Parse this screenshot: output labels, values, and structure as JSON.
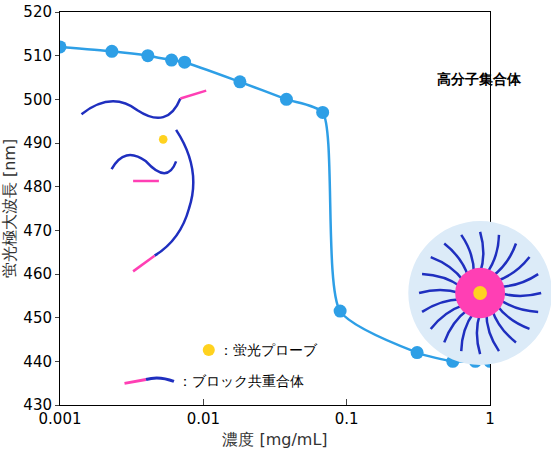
{
  "chart_data": {
    "type": "line",
    "x_label": "濃度 [mg/mL]",
    "y_label": "蛍光極大波長 [nm]",
    "x": [
      0.001,
      0.0023,
      0.0041,
      0.006,
      0.0074,
      0.018,
      0.038,
      0.068,
      0.09,
      0.31,
      0.55,
      0.79,
      1
    ],
    "values": [
      512,
      511,
      510,
      509,
      508.5,
      504,
      500,
      497,
      451.5,
      442,
      440,
      440,
      440
    ],
    "color": "#2e9fe6",
    "marker": "circle",
    "log": "x",
    "grid": false,
    "xlim": [
      0.001,
      1
    ],
    "xticks": [
      0.001,
      0.01,
      0.1,
      1
    ],
    "ylim": [
      430,
      520
    ],
    "yticks": [
      430,
      440,
      450,
      460,
      470,
      480,
      490,
      500,
      510,
      520
    ],
    "annotations": [
      "高分子集合体",
      "：蛍光プローブ",
      "：ブロック共重合体"
    ]
  }
}
